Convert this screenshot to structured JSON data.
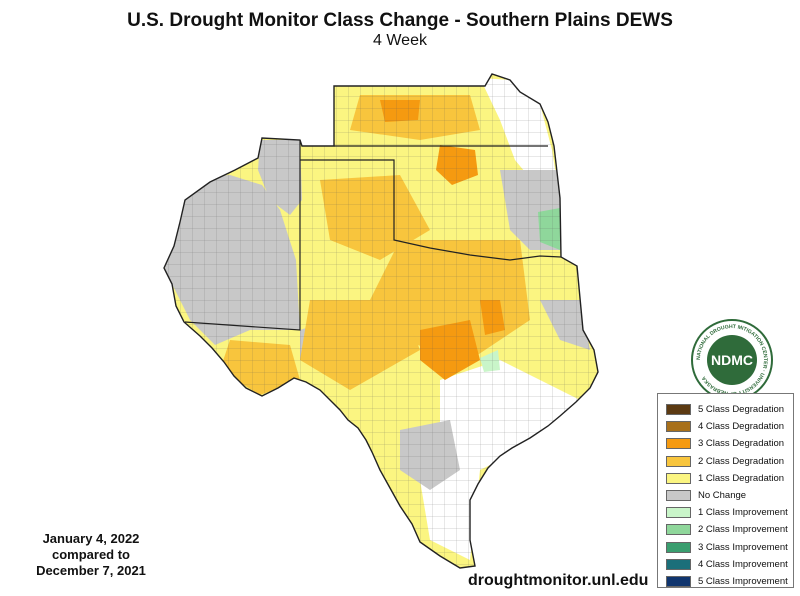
{
  "header": {
    "title": "U.S. Drought Monitor Class Change - Southern Plains DEWS",
    "subtitle": "4 Week"
  },
  "date_block": {
    "line1": "January 4, 2022",
    "line2": "compared to",
    "line3": "December 7, 2021"
  },
  "footer": {
    "url": "droughtmonitor.unl.edu"
  },
  "logo": {
    "text": "NDMC",
    "ring_text": "NATIONAL DROUGHT MITIGATION CENTER · UNIVERSITY OF NEBRASKA"
  },
  "legend": {
    "items": [
      {
        "label": "5 Class Degradation",
        "color": "#5c3a12"
      },
      {
        "label": "4 Class Degradation",
        "color": "#a8701a"
      },
      {
        "label": "3 Class Degradation",
        "color": "#f59a10"
      },
      {
        "label": "2 Class Degradation",
        "color": "#f8c53d"
      },
      {
        "label": "1 Class Degradation",
        "color": "#fbf581"
      },
      {
        "label": "No Change",
        "color": "#c8c8c8"
      },
      {
        "label": "1 Class Improvement",
        "color": "#c9f5c9"
      },
      {
        "label": "2 Class Improvement",
        "color": "#8fd79b"
      },
      {
        "label": "3 Class Improvement",
        "color": "#3a9e6f"
      },
      {
        "label": "4 Class Improvement",
        "color": "#1b6f7a"
      },
      {
        "label": "5 Class Improvement",
        "color": "#10356e"
      }
    ]
  },
  "colors": {
    "no_change": "#c8c8c8",
    "one_class_degradation": "#fbf581",
    "two_class_degradation": "#f8c53d",
    "three_class_degradation": "#f59a10",
    "one_class_improvement": "#c9f5c9",
    "two_class_improvement": "#8fd79b",
    "county_lines": "#444444",
    "state_lines": "#222222",
    "logo_green": "#2f6b3a"
  },
  "map_regions": {
    "states": [
      "Kansas",
      "Oklahoma",
      "Texas",
      "New Mexico"
    ]
  }
}
